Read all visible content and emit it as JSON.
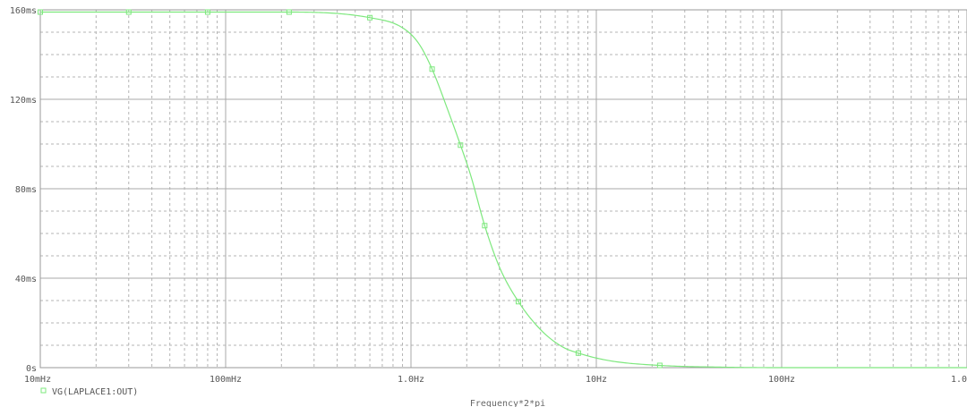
{
  "chart_data": {
    "type": "line",
    "title": "",
    "xlabel": "Frequency*2*pi",
    "ylabel": "",
    "x_scale": "log",
    "xlim": [
      0.01,
      1000
    ],
    "ylim": [
      0,
      0.16
    ],
    "grid": true,
    "x_tick_values": [
      0.01,
      0.1,
      1,
      10,
      100,
      1000
    ],
    "x_tick_labels": [
      "10mHz",
      "100mHz",
      "1.0Hz",
      "10Hz",
      "100Hz",
      "1.0KHz"
    ],
    "y_tick_values": [
      0,
      0.04,
      0.08,
      0.12,
      0.16
    ],
    "y_tick_labels": [
      "0s",
      "40ms",
      "80ms",
      "120ms",
      "160ms"
    ],
    "legend": "bottom-left",
    "series": [
      {
        "name": "VG(LAPLACE1:OUT)",
        "color": "#7ee87e",
        "marker": "square",
        "x": [
          0.01,
          0.03,
          0.08,
          0.22,
          0.6,
          0.9,
          1.1,
          1.3,
          1.6,
          1.85,
          2.1,
          2.5,
          3.0,
          3.8,
          5.0,
          6.5,
          8.0,
          12.0,
          22.0,
          50.0,
          100.0,
          300.0,
          1000.0
        ],
        "y": [
          0.159,
          0.159,
          0.159,
          0.159,
          0.1565,
          0.152,
          0.145,
          0.1335,
          0.114,
          0.0995,
          0.086,
          0.0635,
          0.045,
          0.0295,
          0.017,
          0.0095,
          0.0065,
          0.003,
          0.001,
          0.0002,
          0.0,
          0.0,
          0.0
        ],
        "marker_x": [
          0.01,
          0.03,
          0.08,
          0.22,
          0.6,
          1.3,
          1.85,
          2.5,
          3.8,
          8.0,
          22.0
        ]
      }
    ]
  }
}
